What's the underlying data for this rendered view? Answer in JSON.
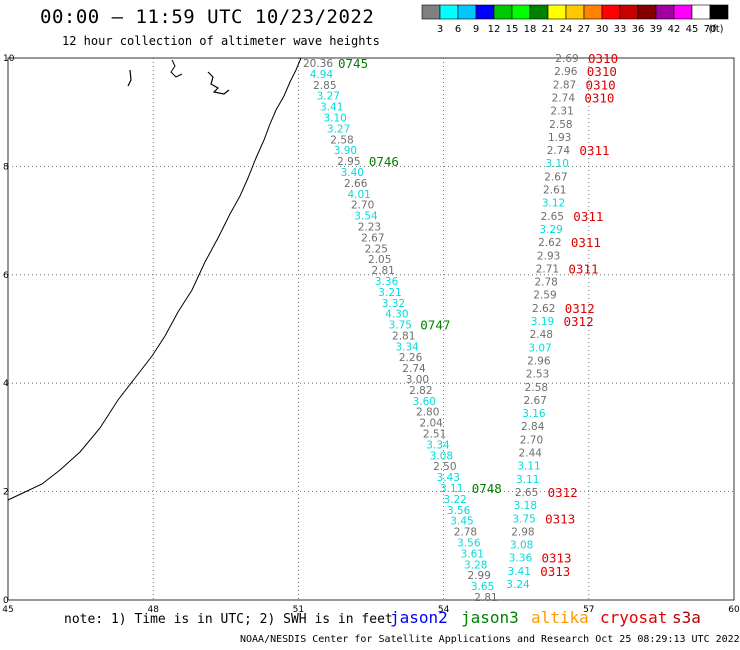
{
  "header": {
    "title": "00:00 – 11:59 UTC 10/23/2022",
    "subtitle": "12 hour collection of altimeter wave heights"
  },
  "legend": {
    "unit": "(ft)",
    "bins": [
      {
        "color": "#808080",
        "label": "3"
      },
      {
        "color": "#00ffff",
        "label": "6"
      },
      {
        "color": "#00c8ff",
        "label": "9"
      },
      {
        "color": "#0000ff",
        "label": "12"
      },
      {
        "color": "#00c800",
        "label": "15"
      },
      {
        "color": "#00ff00",
        "label": "18"
      },
      {
        "color": "#008200",
        "label": "21"
      },
      {
        "color": "#ffff00",
        "label": "24"
      },
      {
        "color": "#ffc800",
        "label": "27"
      },
      {
        "color": "#ff8200",
        "label": "30"
      },
      {
        "color": "#ff0000",
        "label": "33"
      },
      {
        "color": "#c80000",
        "label": "36"
      },
      {
        "color": "#820000",
        "label": "39"
      },
      {
        "color": "#a000a0",
        "label": "42"
      },
      {
        "color": "#ff00ff",
        "label": "45"
      },
      {
        "color": "#ffffff",
        "label": "70"
      },
      {
        "color": "#000000",
        "label": ""
      }
    ]
  },
  "axes": {
    "x_ticks": [
      "45",
      "48",
      "51",
      "54",
      "57",
      "60"
    ],
    "y_ticks": [
      "0",
      "2",
      "4",
      "6",
      "8",
      "10"
    ]
  },
  "colors": {
    "gray": "#6e6e6e",
    "cyan": "#00dcdc",
    "green": "#008200",
    "red": "#e00000",
    "orange": "#ff9900",
    "blue": "#0000ff",
    "dark_red": "#b40000"
  },
  "track1": [
    {
      "v": "20.36",
      "c": "gray"
    },
    {
      "v": "4.94",
      "c": "cyan"
    },
    {
      "v": "2.85",
      "c": "gray"
    },
    {
      "v": "3.27",
      "c": "cyan"
    },
    {
      "v": "3.41",
      "c": "cyan"
    },
    {
      "v": "3.10",
      "c": "cyan"
    },
    {
      "v": "3.27",
      "c": "cyan"
    },
    {
      "v": "2.58",
      "c": "gray"
    },
    {
      "v": "3.90",
      "c": "cyan"
    },
    {
      "v": "2.95",
      "c": "gray"
    },
    {
      "v": "3.40",
      "c": "cyan"
    },
    {
      "v": "2.66",
      "c": "gray"
    },
    {
      "v": "4.01",
      "c": "cyan"
    },
    {
      "v": "2.70",
      "c": "gray"
    },
    {
      "v": "3.54",
      "c": "cyan"
    },
    {
      "v": "2.23",
      "c": "gray"
    },
    {
      "v": "2.67",
      "c": "gray"
    },
    {
      "v": "2.25",
      "c": "gray"
    },
    {
      "v": "2.05",
      "c": "gray"
    },
    {
      "v": "2.81",
      "c": "gray"
    },
    {
      "v": "3.36",
      "c": "cyan"
    },
    {
      "v": "3.21",
      "c": "cyan"
    },
    {
      "v": "3.32",
      "c": "cyan"
    },
    {
      "v": "4.30",
      "c": "cyan"
    },
    {
      "v": "3.75",
      "c": "cyan"
    },
    {
      "v": "2.81",
      "c": "gray"
    },
    {
      "v": "3.34",
      "c": "cyan"
    },
    {
      "v": "2.26",
      "c": "gray"
    },
    {
      "v": "2.74",
      "c": "gray"
    },
    {
      "v": "3.00",
      "c": "gray"
    },
    {
      "v": "2.82",
      "c": "gray"
    },
    {
      "v": "3.60",
      "c": "cyan"
    },
    {
      "v": "2.80",
      "c": "gray"
    },
    {
      "v": "2.04",
      "c": "gray"
    },
    {
      "v": "2.51",
      "c": "gray"
    },
    {
      "v": "3.34",
      "c": "cyan"
    },
    {
      "v": "3.08",
      "c": "cyan"
    },
    {
      "v": "2.50",
      "c": "gray"
    },
    {
      "v": "3.43",
      "c": "cyan"
    },
    {
      "v": "3.11",
      "c": "cyan"
    },
    {
      "v": "3.22",
      "c": "cyan"
    },
    {
      "v": "3.56",
      "c": "cyan"
    },
    {
      "v": "3.45",
      "c": "cyan"
    },
    {
      "v": "2.78",
      "c": "gray"
    },
    {
      "v": "3.56",
      "c": "cyan"
    },
    {
      "v": "3.61",
      "c": "cyan"
    },
    {
      "v": "3.28",
      "c": "cyan"
    },
    {
      "v": "2.99",
      "c": "gray"
    },
    {
      "v": "3.65",
      "c": "cyan"
    },
    {
      "v": "2.81",
      "c": "gray"
    }
  ],
  "track1_times": [
    {
      "t": "0745",
      "after": 0
    },
    {
      "t": "0746",
      "after": 9
    },
    {
      "t": "0747",
      "after": 24
    },
    {
      "t": "0748",
      "after": 39
    }
  ],
  "track2": [
    {
      "v": "2.69",
      "c": "gray",
      "t": "0310"
    },
    {
      "v": "2.96",
      "c": "gray",
      "t": "0310"
    },
    {
      "v": "2.87",
      "c": "gray",
      "t": "0310"
    },
    {
      "v": "2.74",
      "c": "gray",
      "t": "0310"
    },
    {
      "v": "2.31",
      "c": "gray",
      "t": ""
    },
    {
      "v": "2.58",
      "c": "gray",
      "t": ""
    },
    {
      "v": "1.93",
      "c": "gray",
      "t": ""
    },
    {
      "v": "2.74",
      "c": "gray",
      "t": "0311"
    },
    {
      "v": "3.10",
      "c": "cyan",
      "t": ""
    },
    {
      "v": "2.67",
      "c": "gray",
      "t": ""
    },
    {
      "v": "2.61",
      "c": "gray",
      "t": ""
    },
    {
      "v": "3.12",
      "c": "cyan",
      "t": ""
    },
    {
      "v": "2.65",
      "c": "gray",
      "t": "0311"
    },
    {
      "v": "3.29",
      "c": "cyan",
      "t": ""
    },
    {
      "v": "2.62",
      "c": "gray",
      "t": "0311"
    },
    {
      "v": "2.93",
      "c": "gray",
      "t": ""
    },
    {
      "v": "2.71",
      "c": "gray",
      "t": "0311"
    },
    {
      "v": "2.78",
      "c": "gray",
      "t": ""
    },
    {
      "v": "2.59",
      "c": "gray",
      "t": ""
    },
    {
      "v": "2.62",
      "c": "gray",
      "t": "0312"
    },
    {
      "v": "3.19",
      "c": "cyan",
      "t": "0312"
    },
    {
      "v": "2.48",
      "c": "gray",
      "t": ""
    },
    {
      "v": "3.07",
      "c": "cyan",
      "t": ""
    },
    {
      "v": "2.96",
      "c": "gray",
      "t": ""
    },
    {
      "v": "2.53",
      "c": "gray",
      "t": ""
    },
    {
      "v": "2.58",
      "c": "gray",
      "t": ""
    },
    {
      "v": "2.67",
      "c": "gray",
      "t": ""
    },
    {
      "v": "3.16",
      "c": "cyan",
      "t": ""
    },
    {
      "v": "2.84",
      "c": "gray",
      "t": ""
    },
    {
      "v": "2.70",
      "c": "gray",
      "t": ""
    },
    {
      "v": "2.44",
      "c": "gray",
      "t": ""
    },
    {
      "v": "3.11",
      "c": "cyan",
      "t": ""
    },
    {
      "v": "3.11",
      "c": "cyan",
      "t": ""
    },
    {
      "v": "2.65",
      "c": "gray",
      "t": "0312"
    },
    {
      "v": "3.18",
      "c": "cyan",
      "t": ""
    },
    {
      "v": "3.75",
      "c": "cyan",
      "t": "0313"
    },
    {
      "v": "2.98",
      "c": "gray",
      "t": ""
    },
    {
      "v": "3.08",
      "c": "cyan",
      "t": ""
    },
    {
      "v": "3.36",
      "c": "cyan",
      "t": "0313"
    },
    {
      "v": "3.41",
      "c": "cyan",
      "t": "0313"
    },
    {
      "v": "3.24",
      "c": "cyan",
      "t": ""
    }
  ],
  "footer": {
    "note": "note: 1) Time is in UTC; 2) SWH is in feet",
    "satellites": [
      {
        "name": "jason2",
        "c": "blue"
      },
      {
        "name": "jason3",
        "c": "green"
      },
      {
        "name": "altika",
        "c": "orange"
      },
      {
        "name": "cryosat",
        "c": "red"
      },
      {
        "name": "s3a",
        "c": "dark_red"
      }
    ],
    "credit": "NOAA/NESDIS Center for Satellite Applications and Research    Oct 25 08:29:13 UTC 2022"
  }
}
